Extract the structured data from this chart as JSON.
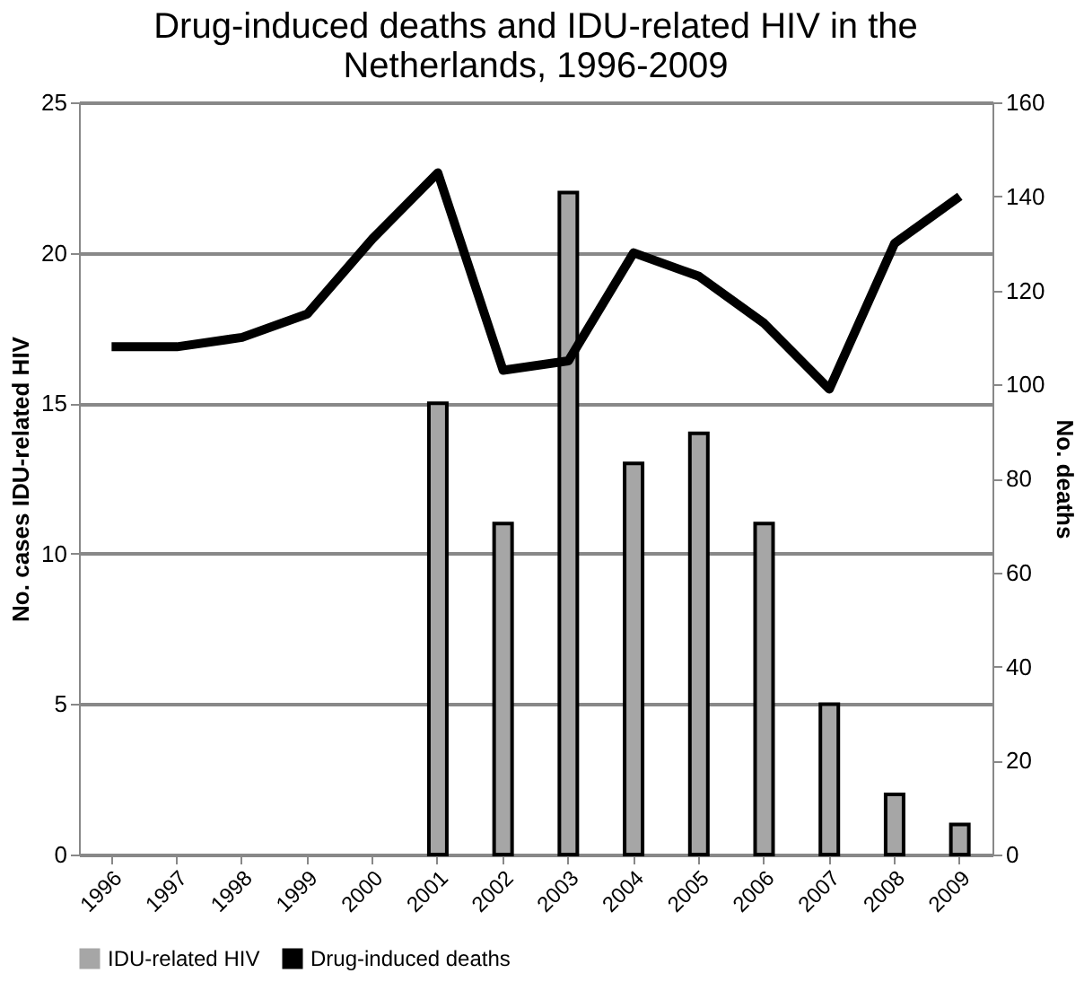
{
  "chart_data": {
    "type": "bar",
    "title": "Drug-induced deaths and IDU-related HIV in the Netherlands, 1996-2009",
    "categories": [
      "1996",
      "1997",
      "1998",
      "1999",
      "2000",
      "2001",
      "2002",
      "2003",
      "2004",
      "2005",
      "2006",
      "2007",
      "2008",
      "2009"
    ],
    "series": [
      {
        "name": "IDU-related HIV",
        "color": "#a6a6a6",
        "values": [
          null,
          null,
          null,
          null,
          null,
          15,
          11,
          22,
          13,
          14,
          11,
          5,
          2,
          1
        ]
      },
      {
        "name": "Drug-induced deaths",
        "type": "line",
        "axis": "y2",
        "color": "#000000",
        "values": [
          108,
          108,
          110,
          115,
          131,
          145,
          103,
          105,
          128,
          123,
          113,
          99,
          130,
          140
        ]
      }
    ],
    "ylabel": "No. cases IDU-related HIV",
    "y2label": "No. deaths",
    "ylim": [
      0,
      25
    ],
    "yticks": [
      0,
      5,
      10,
      15,
      20,
      25
    ],
    "y2lim": [
      0,
      160
    ],
    "y2ticks": [
      0,
      20,
      40,
      60,
      80,
      100,
      120,
      140,
      160
    ],
    "grid": "y",
    "legend": "bottom",
    "marker": "none"
  }
}
